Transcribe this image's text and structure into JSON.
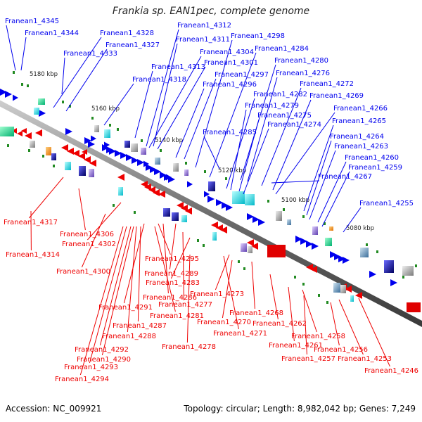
{
  "title": "Frankia sp. EAN1pec, complete genome",
  "footer": {
    "accession": "Accession: NC_009921",
    "summary": "Topology: circular; Length: 8,982,042 bp; Genes: 7,249"
  },
  "ticks": [
    "5180 kbp",
    "5160 kbp",
    "5140 kbp",
    "5120 kbp",
    "5100 kbp",
    "5080 kbp"
  ],
  "colors": {
    "forward": "#0000ee",
    "reverse": "#ee0000",
    "backbone": "#777777",
    "green_marker": "#228b22"
  },
  "forward_genes": [
    "Franean1_4345",
    "Franean1_4344",
    "Franean1_4328",
    "Franean1_4327",
    "Franean1_4333",
    "Franean1_4312",
    "Franean1_4311",
    "Franean1_4298",
    "Franean1_4304",
    "Franean1_4284",
    "Franean1_4301",
    "Franean1_4280",
    "Franean1_4313",
    "Franean1_4297",
    "Franean1_4276",
    "Franean1_4318",
    "Franean1_4296",
    "Franean1_4272",
    "Franean1_4282",
    "Franean1_4269",
    "Franean1_4279",
    "Franean1_4266",
    "Franean1_4275",
    "Franean1_4265",
    "Franean1_4274",
    "Franean1_4285",
    "Franean1_4264",
    "Franean1_4263",
    "Franean1_4260",
    "Franean1_4259",
    "Franean1_4267",
    "Franean1_4255"
  ],
  "reverse_genes": [
    "Franean1_4317",
    "Franean1_4306",
    "Franean1_4302",
    "Franean1_4314",
    "Franean1_4300",
    "Franean1_4295",
    "Franean1_4289",
    "Franean1_4283",
    "Franean1_4286",
    "Franean1_4291",
    "Franean1_4277",
    "Franean1_4273",
    "Franean1_4281",
    "Franean1_4287",
    "Franean1_4268",
    "Franean1_4270",
    "Franean1_4262",
    "Franean1_4288",
    "Franean1_4271",
    "Franean1_4278",
    "Franean1_4292",
    "Franean1_4261",
    "Franean1_4258",
    "Franean1_4290",
    "Franean1_4257",
    "Franean1_4256",
    "Franean1_4293",
    "Franean1_4253",
    "Franean1_4246",
    "Franean1_4294"
  ]
}
